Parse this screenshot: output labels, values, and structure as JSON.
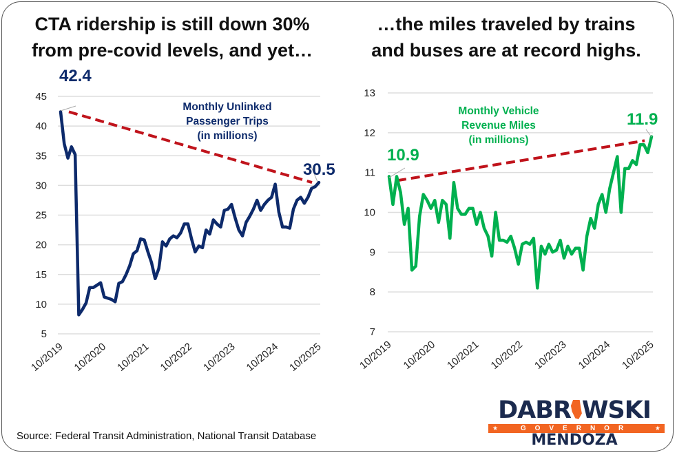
{
  "titles": {
    "left_line1": "CTA ridership is still down 30%",
    "left_line2": "from pre-covid levels, and yet…",
    "right_line1": "…the miles traveled by trains",
    "right_line2": "and buses are at record highs."
  },
  "source": "Source: Federal Transit Administration, National Transit Database",
  "logo": {
    "top_left": "DABR",
    "top_right": "WSKI",
    "middle": "GOVERNOR",
    "star": "★",
    "bottom": "MENDOZA",
    "navy": "#1b2a4e",
    "orange": "#f26522"
  },
  "chart_data": [
    {
      "type": "line",
      "title": "Monthly Unlinked Passenger Trips (in millions)",
      "series_label_lines": [
        "Monthly Unlinked",
        "Passenger Trips",
        "(in millions)"
      ],
      "color": "#0d2a6b",
      "trend_color": "#c0141c",
      "xlabel": "",
      "ylabel": "",
      "ylim": [
        5,
        45
      ],
      "yticks": [
        45,
        40,
        35,
        30,
        25,
        20,
        15,
        10,
        5
      ],
      "xticks": [
        "10/2019",
        "10/2020",
        "10/2021",
        "10/2022",
        "10/2023",
        "10/2024",
        "10/2025"
      ],
      "grid": true,
      "start_label": "42.4",
      "end_label": "30.5",
      "trend": {
        "from": 42.4,
        "to": 30.5
      },
      "values": [
        42.4,
        37.0,
        34.6,
        36.5,
        35.2,
        8.2,
        9.1,
        10.2,
        12.8,
        12.8,
        13.2,
        13.6,
        11.2,
        11.0,
        10.8,
        10.4,
        13.5,
        13.8,
        15.0,
        16.5,
        18.5,
        19.0,
        21.0,
        20.8,
        18.8,
        17.0,
        14.3,
        16.0,
        20.5,
        19.8,
        21.0,
        21.5,
        21.2,
        22.0,
        23.5,
        23.5,
        21.0,
        18.8,
        19.8,
        19.5,
        22.5,
        21.8,
        24.2,
        23.5,
        23.0,
        25.8,
        26.0,
        26.8,
        24.5,
        22.5,
        21.5,
        23.8,
        24.8,
        26.0,
        27.5,
        25.8,
        26.8,
        27.5,
        28.0,
        30.2,
        25.5,
        23.0,
        23.0,
        22.8,
        26.0,
        27.5,
        28.0,
        27.0,
        28.0,
        29.5,
        29.8,
        30.5
      ]
    },
    {
      "type": "line",
      "title": "Monthly Vehicle Revenue Miles (in millions)",
      "series_label_lines": [
        "Monthly Vehicle",
        "Revenue Miles",
        "(in millions)"
      ],
      "color": "#00b04f",
      "trend_color": "#c0141c",
      "xlabel": "",
      "ylabel": "",
      "ylim": [
        7,
        13
      ],
      "yticks": [
        13,
        12,
        11,
        10,
        9,
        8,
        7
      ],
      "xticks": [
        "10/2019",
        "10/2020",
        "10/2021",
        "10/2022",
        "10/2023",
        "10/2024",
        "10/2025"
      ],
      "grid": true,
      "start_label": "10.9",
      "end_label": "11.9",
      "trend": {
        "from": 10.8,
        "to": 11.8
      },
      "values": [
        10.9,
        10.2,
        10.9,
        10.5,
        9.7,
        10.1,
        8.55,
        8.65,
        9.9,
        10.45,
        10.3,
        10.1,
        10.3,
        9.75,
        10.3,
        10.2,
        9.35,
        10.75,
        10.1,
        9.95,
        9.95,
        10.1,
        10.1,
        9.7,
        10.0,
        9.6,
        9.4,
        8.9,
        10.0,
        9.3,
        9.3,
        9.25,
        9.4,
        9.1,
        8.7,
        9.2,
        9.25,
        9.2,
        9.35,
        8.1,
        9.15,
        8.95,
        9.2,
        9.0,
        9.05,
        9.3,
        8.85,
        9.15,
        8.95,
        9.1,
        9.1,
        8.55,
        9.4,
        9.85,
        9.6,
        10.2,
        10.45,
        10.0,
        10.6,
        11.0,
        11.4,
        10.0,
        11.1,
        11.1,
        11.3,
        11.2,
        11.7,
        11.7,
        11.5,
        11.9
      ]
    }
  ]
}
